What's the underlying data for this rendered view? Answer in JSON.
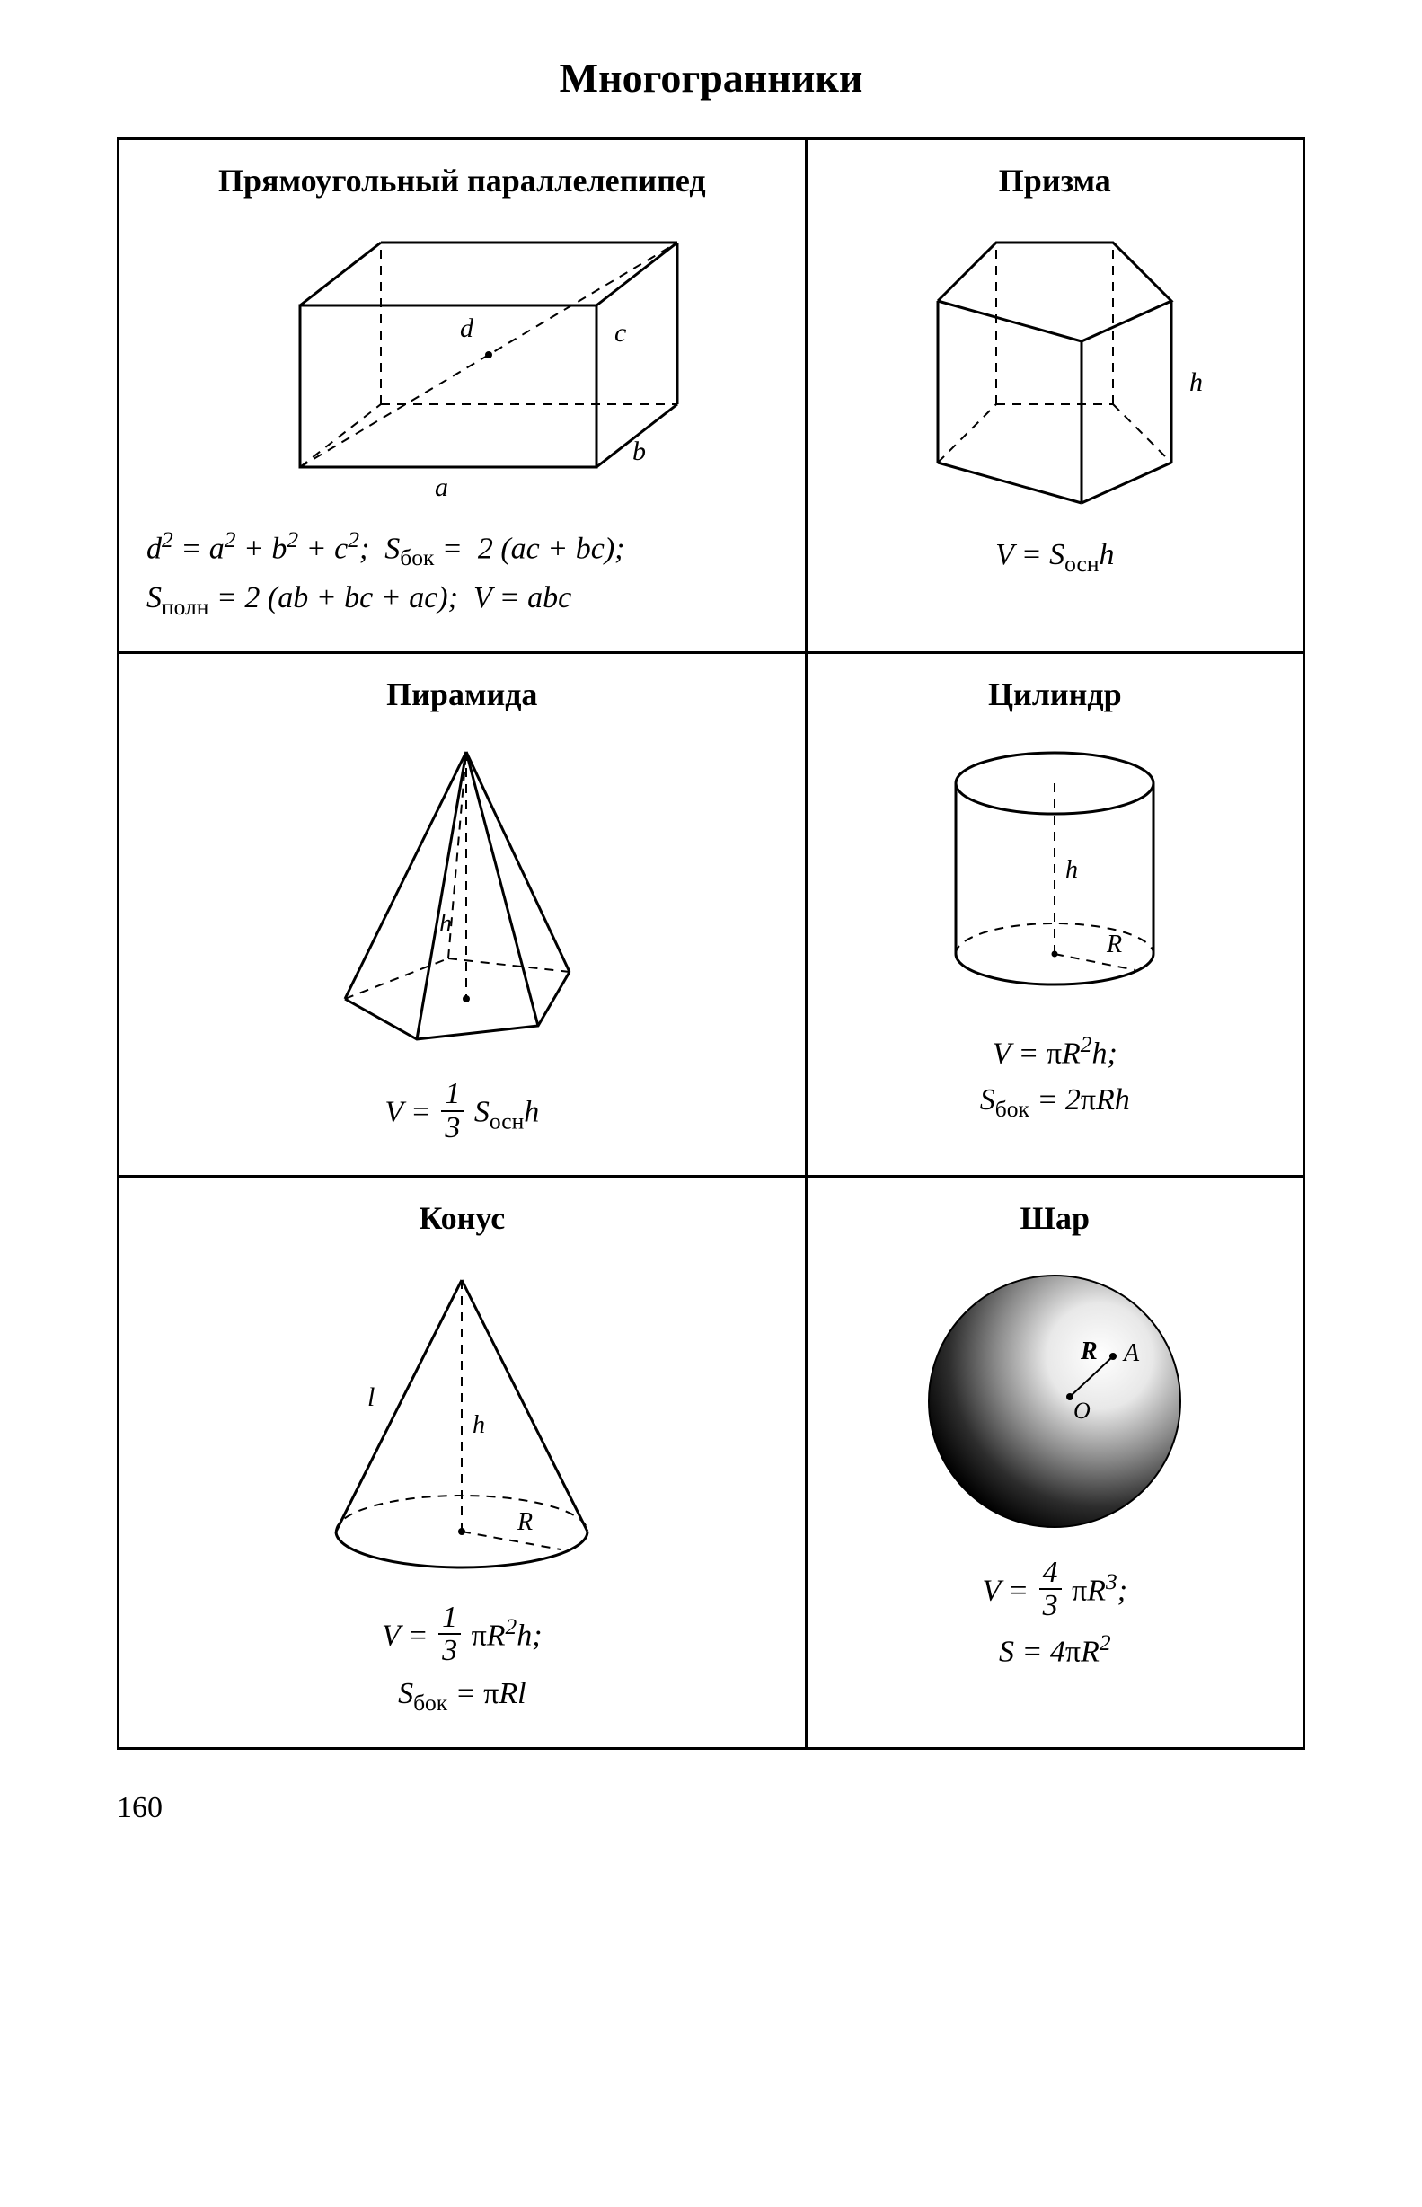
{
  "page": {
    "title": "Многогранники",
    "page_number": "160"
  },
  "styles": {
    "stroke_color": "#000000",
    "stroke_width_main": 3,
    "stroke_width_thin": 2,
    "dash_pattern": "10,8",
    "background_color": "#ffffff",
    "title_fontsize": 46,
    "cell_title_fontsize": 36,
    "formula_fontsize": 34,
    "font_family": "Times New Roman"
  },
  "cells": {
    "cuboid": {
      "title": "Прямоугольный параллелепипед",
      "labels": {
        "a": "a",
        "b": "b",
        "c": "c",
        "d": "d"
      },
      "formula_html": "<i>d</i><span class='sup'>2</span> = <i>a</i><span class='sup'>2</span> + <i>b</i><span class='sup'>2</span> + <i>c</i><span class='sup'>2</span>;&nbsp;&nbsp;<i>S</i><span class='sub'>бок</span> = &nbsp;2 (<i>ac</i> + <i>bc</i>);<br><i>S</i><span class='sub'>полн</span> = 2 (<i>ab</i> + <i>bc</i> + <i>ac</i>);&nbsp;&nbsp;<i>V</i> = <i>abc</i>"
    },
    "prism": {
      "title": "Призма",
      "labels": {
        "h": "h"
      },
      "formula_html": "<i>V</i> = <i>S</i><span class='sub'>осн</span><i>h</i>"
    },
    "pyramid": {
      "title": "Пирамида",
      "labels": {
        "h": "h"
      },
      "formula_html": "<i>V</i> = <span class='frac'><span class='top'>1</span><span class='bot'>3</span></span> <i>S</i><span class='sub'>осн</span><i>h</i>"
    },
    "cylinder": {
      "title": "Цилиндр",
      "labels": {
        "h": "h",
        "R": "R"
      },
      "formula_html": "<i>V</i> = <span class='upright'>π</span><i>R</i><span class='sup'>2</span><i>h</i>;<br><i>S</i><span class='sub'>бок</span> = 2<span class='upright'>π</span><i>Rh</i>"
    },
    "cone": {
      "title": "Конус",
      "labels": {
        "l": "l",
        "h": "h",
        "R": "R"
      },
      "formula_html": "<i>V</i> = <span class='frac'><span class='top'>1</span><span class='bot'>3</span></span> <span class='upright'>π</span><i>R</i><span class='sup'>2</span><i>h</i>;<br><i>S</i><span class='sub'>бок</span> = <span class='upright'>π</span><i>Rl</i>"
    },
    "sphere": {
      "title": "Шар",
      "labels": {
        "R": "R",
        "A": "A",
        "O": "O"
      },
      "formula_html": "<i>V</i> = <span class='frac'><span class='top'>4</span><span class='bot'>3</span></span> <span class='upright'>π</span><i>R</i><span class='sup'>3</span>;<br><i>S</i> = 4<span class='upright'>π</span><i>R</i><span class='sup'>2</span>"
    }
  }
}
